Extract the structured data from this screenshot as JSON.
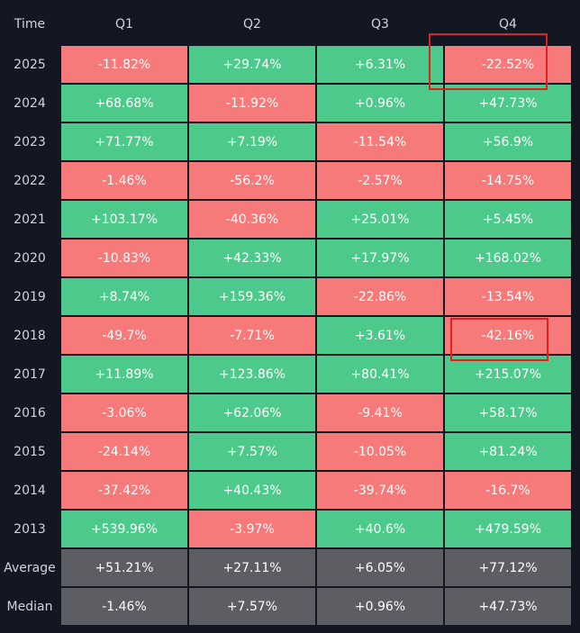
{
  "table": {
    "header": [
      "Time",
      "Q1",
      "Q2",
      "Q3",
      "Q4"
    ],
    "rows": [
      {
        "label": "2025",
        "cells": [
          "-11.82%",
          "+29.74%",
          "+6.31%",
          "-22.52%"
        ]
      },
      {
        "label": "2024",
        "cells": [
          "+68.68%",
          "-11.92%",
          "+0.96%",
          "+47.73%"
        ]
      },
      {
        "label": "2023",
        "cells": [
          "+71.77%",
          "+7.19%",
          "-11.54%",
          "+56.9%"
        ]
      },
      {
        "label": "2022",
        "cells": [
          "-1.46%",
          "-56.2%",
          "-2.57%",
          "-14.75%"
        ]
      },
      {
        "label": "2021",
        "cells": [
          "+103.17%",
          "-40.36%",
          "+25.01%",
          "+5.45%"
        ]
      },
      {
        "label": "2020",
        "cells": [
          "-10.83%",
          "+42.33%",
          "+17.97%",
          "+168.02%"
        ]
      },
      {
        "label": "2019",
        "cells": [
          "+8.74%",
          "+159.36%",
          "-22.86%",
          "-13.54%"
        ]
      },
      {
        "label": "2018",
        "cells": [
          "-49.7%",
          "-7.71%",
          "+3.61%",
          "-42.16%"
        ]
      },
      {
        "label": "2017",
        "cells": [
          "+11.89%",
          "+123.86%",
          "+80.41%",
          "+215.07%"
        ]
      },
      {
        "label": "2016",
        "cells": [
          "-3.06%",
          "+62.06%",
          "-9.41%",
          "+58.17%"
        ]
      },
      {
        "label": "2015",
        "cells": [
          "-24.14%",
          "+7.57%",
          "-10.05%",
          "+81.24%"
        ]
      },
      {
        "label": "2014",
        "cells": [
          "-37.42%",
          "+40.43%",
          "-39.74%",
          "-16.7%"
        ]
      },
      {
        "label": "2013",
        "cells": [
          "+539.96%",
          "-3.97%",
          "+40.6%",
          "+479.59%"
        ]
      }
    ],
    "summary_rows": [
      {
        "label": "Average",
        "cells": [
          "+51.21%",
          "+27.11%",
          "+6.05%",
          "+77.12%"
        ]
      },
      {
        "label": "Median",
        "cells": [
          "-1.46%",
          "+7.57%",
          "+0.96%",
          "+47.73%"
        ]
      }
    ]
  }
}
